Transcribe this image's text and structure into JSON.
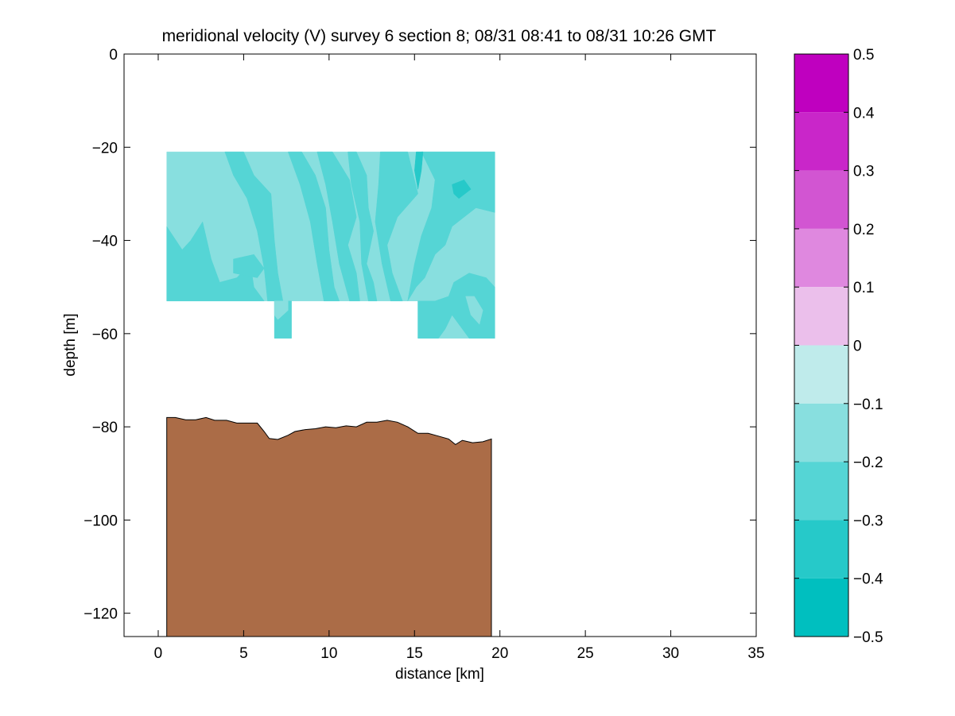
{
  "chart_data": {
    "type": "contour section",
    "title": "meridional velocity (V) survey 6 section 8; 08/31 08:41 to 08/31 10:26 GMT",
    "xlabel": "distance [km]",
    "ylabel": "depth [m]",
    "xlim": [
      -2,
      35
    ],
    "ylim": [
      -125,
      0
    ],
    "xticks": [
      0,
      5,
      10,
      15,
      20,
      25,
      30,
      35
    ],
    "xtick_labels": [
      "0",
      "5",
      "10",
      "15",
      "20",
      "25",
      "30",
      "35"
    ],
    "yticks": [
      0,
      -20,
      -40,
      -60,
      -80,
      -100,
      -120
    ],
    "ytick_labels": [
      "0",
      "−20",
      "−40",
      "−60",
      "−80",
      "−100",
      "−120"
    ],
    "grid": false,
    "data_region": {
      "x_range": [
        0.5,
        19.7
      ],
      "depth_top": -21,
      "depth_bottom_main": -53,
      "depth_bottom_extended": -61,
      "extended_columns_x": [
        [
          6.8,
          7.8
        ],
        [
          15.2,
          19.7
        ]
      ],
      "value_range": [
        -0.3,
        -0.1
      ]
    },
    "velocity_regions": [
      {
        "level": -0.2,
        "polygon": [
          [
            0.5,
            -21
          ],
          [
            19.7,
            -21
          ],
          [
            19.7,
            -53
          ],
          [
            0.5,
            -53
          ]
        ]
      },
      {
        "level": -0.3,
        "polygon": [
          [
            0.5,
            -37
          ],
          [
            1.4,
            -42
          ],
          [
            1.9,
            -40
          ],
          [
            2.6,
            -36
          ],
          [
            3.1,
            -44
          ],
          [
            3.6,
            -49
          ],
          [
            4.6,
            -48
          ],
          [
            5.4,
            -45
          ],
          [
            5.6,
            -50
          ],
          [
            6.2,
            -53
          ],
          [
            0.5,
            -53
          ]
        ]
      },
      {
        "level": -0.3,
        "polygon": [
          [
            3.9,
            -21
          ],
          [
            5.0,
            -21
          ],
          [
            5.6,
            -26
          ],
          [
            6.6,
            -30
          ],
          [
            6.8,
            -40
          ],
          [
            7.0,
            -47
          ],
          [
            7.3,
            -53
          ],
          [
            6.4,
            -53
          ],
          [
            6.2,
            -46
          ],
          [
            5.8,
            -38
          ],
          [
            5.2,
            -31
          ],
          [
            4.4,
            -26
          ]
        ]
      },
      {
        "level": -0.3,
        "polygon": [
          [
            4.4,
            -44
          ],
          [
            5.6,
            -43
          ],
          [
            6.2,
            -46
          ],
          [
            5.8,
            -48
          ],
          [
            4.4,
            -47
          ]
        ]
      },
      {
        "level": -0.3,
        "polygon": [
          [
            7.6,
            -21
          ],
          [
            8.4,
            -21
          ],
          [
            9.2,
            -26
          ],
          [
            9.8,
            -33
          ],
          [
            10.0,
            -42
          ],
          [
            10.3,
            -50
          ],
          [
            10.6,
            -53
          ],
          [
            9.7,
            -53
          ],
          [
            9.3,
            -45
          ],
          [
            8.9,
            -36
          ],
          [
            8.3,
            -28
          ]
        ]
      },
      {
        "level": -0.3,
        "polygon": [
          [
            9.3,
            -21
          ],
          [
            10.2,
            -21
          ],
          [
            11.2,
            -27
          ],
          [
            11.6,
            -35
          ],
          [
            11.1,
            -41
          ],
          [
            11.6,
            -47
          ],
          [
            11.8,
            -53
          ],
          [
            11.2,
            -53
          ],
          [
            10.6,
            -45
          ],
          [
            10.2,
            -36
          ],
          [
            9.8,
            -28
          ]
        ]
      },
      {
        "level": -0.3,
        "polygon": [
          [
            11.1,
            -21
          ],
          [
            11.6,
            -21
          ],
          [
            12.2,
            -26
          ],
          [
            12.3,
            -33
          ],
          [
            12.6,
            -38
          ],
          [
            12.2,
            -45
          ],
          [
            12.6,
            -49
          ],
          [
            12.8,
            -53
          ],
          [
            12.3,
            -53
          ],
          [
            11.9,
            -45
          ],
          [
            11.8,
            -36
          ],
          [
            11.3,
            -28
          ]
        ]
      },
      {
        "level": -0.3,
        "polygon": [
          [
            13.0,
            -21
          ],
          [
            14.6,
            -21
          ],
          [
            15.2,
            -30
          ],
          [
            14.0,
            -35
          ],
          [
            13.4,
            -41
          ],
          [
            13.7,
            -47
          ],
          [
            14.3,
            -53
          ],
          [
            13.6,
            -53
          ],
          [
            13.1,
            -45
          ],
          [
            12.7,
            -36
          ],
          [
            12.9,
            -28
          ]
        ]
      },
      {
        "level": -0.3,
        "polygon": [
          [
            15.4,
            -21
          ],
          [
            19.7,
            -21
          ],
          [
            19.7,
            -34
          ],
          [
            18.6,
            -33
          ],
          [
            17.9,
            -35
          ],
          [
            17.2,
            -37
          ],
          [
            16.8,
            -41
          ],
          [
            16.2,
            -43
          ],
          [
            15.6,
            -48
          ],
          [
            15.1,
            -50
          ],
          [
            14.6,
            -53
          ],
          [
            15.0,
            -45
          ],
          [
            15.4,
            -39
          ],
          [
            16.0,
            -33
          ],
          [
            16.2,
            -27
          ]
        ]
      },
      {
        "level": -0.4,
        "polygon": [
          [
            15.1,
            -21
          ],
          [
            15.5,
            -21
          ],
          [
            15.4,
            -25
          ],
          [
            15.2,
            -29
          ],
          [
            15.0,
            -25
          ]
        ]
      },
      {
        "level": -0.4,
        "polygon": [
          [
            17.2,
            -28
          ],
          [
            17.9,
            -27
          ],
          [
            18.3,
            -29
          ],
          [
            17.6,
            -31
          ],
          [
            17.3,
            -30
          ]
        ]
      },
      {
        "level": -0.3,
        "polygon": [
          [
            6.8,
            -53
          ],
          [
            7.8,
            -53
          ],
          [
            7.8,
            -61
          ],
          [
            6.8,
            -61
          ]
        ]
      },
      {
        "level": -0.2,
        "polygon": [
          [
            6.8,
            -53
          ],
          [
            7.6,
            -53
          ],
          [
            7.6,
            -55
          ],
          [
            7.0,
            -57
          ],
          [
            6.8,
            -56
          ]
        ]
      },
      {
        "level": -0.2,
        "polygon": [
          [
            15.2,
            -53
          ],
          [
            19.7,
            -53
          ],
          [
            19.7,
            -61
          ],
          [
            15.2,
            -61
          ]
        ]
      },
      {
        "level": -0.3,
        "polygon": [
          [
            17.3,
            -49
          ],
          [
            18.2,
            -47
          ],
          [
            19.2,
            -48
          ],
          [
            19.7,
            -50
          ],
          [
            19.7,
            -61
          ],
          [
            18.2,
            -61
          ],
          [
            17.6,
            -58
          ],
          [
            17.2,
            -56
          ],
          [
            16.8,
            -59
          ],
          [
            16.4,
            -61
          ],
          [
            15.2,
            -61
          ],
          [
            15.2,
            -53
          ],
          [
            16.2,
            -53
          ],
          [
            17.0,
            -52
          ]
        ]
      },
      {
        "level": -0.2,
        "polygon": [
          [
            18.0,
            -52
          ],
          [
            18.5,
            -52
          ],
          [
            19.0,
            -55
          ],
          [
            18.8,
            -58
          ],
          [
            18.3,
            -56
          ]
        ]
      }
    ],
    "bathymetry": [
      [
        0.5,
        -78
      ],
      [
        1.0,
        -78
      ],
      [
        1.6,
        -78.5
      ],
      [
        2.2,
        -78.5
      ],
      [
        2.8,
        -78
      ],
      [
        3.3,
        -78.6
      ],
      [
        4.0,
        -78.6
      ],
      [
        4.6,
        -79.2
      ],
      [
        5.2,
        -79.2
      ],
      [
        5.8,
        -79.2
      ],
      [
        6.2,
        -81
      ],
      [
        6.5,
        -82.5
      ],
      [
        7.0,
        -82.7
      ],
      [
        7.6,
        -81.8
      ],
      [
        8.0,
        -81
      ],
      [
        8.6,
        -80.6
      ],
      [
        9.2,
        -80.4
      ],
      [
        9.8,
        -80
      ],
      [
        10.4,
        -80.2
      ],
      [
        11.0,
        -79.8
      ],
      [
        11.6,
        -80
      ],
      [
        12.2,
        -79
      ],
      [
        12.8,
        -79
      ],
      [
        13.4,
        -78.6
      ],
      [
        14.0,
        -79
      ],
      [
        14.6,
        -80
      ],
      [
        15.2,
        -81.4
      ],
      [
        15.8,
        -81.4
      ],
      [
        16.4,
        -82
      ],
      [
        17.0,
        -82.6
      ],
      [
        17.4,
        -83.8
      ],
      [
        17.8,
        -82.9
      ],
      [
        18.4,
        -83.4
      ],
      [
        19.0,
        -83.2
      ],
      [
        19.5,
        -82.6
      ]
    ],
    "bathymetry_xrange": [
      0.5,
      19.5
    ],
    "colorbar": {
      "range": [
        -0.5,
        0.5
      ],
      "step": 0.1,
      "tick_values": [
        0.5,
        0.4,
        0.3,
        0.2,
        0.1,
        0,
        -0.1,
        -0.2,
        -0.3,
        -0.4,
        -0.5
      ],
      "tick_labels": [
        "0.5",
        "0.4",
        "0.3",
        "0.2",
        "0.1",
        "0",
        "−0.1",
        "−0.2",
        "−0.3",
        "−0.4",
        "−0.5"
      ],
      "bands": [
        {
          "from": 0.4,
          "to": 0.5,
          "color": "#bf00bf"
        },
        {
          "from": 0.3,
          "to": 0.4,
          "color": "#c926c9"
        },
        {
          "from": 0.2,
          "to": 0.3,
          "color": "#d255d2"
        },
        {
          "from": 0.1,
          "to": 0.2,
          "color": "#df88df"
        },
        {
          "from": 0.0,
          "to": 0.1,
          "color": "#ebbfeb"
        },
        {
          "from": -0.1,
          "to": 0.0,
          "color": "#bfebeb"
        },
        {
          "from": -0.2,
          "to": -0.1,
          "color": "#88dfdf"
        },
        {
          "from": -0.3,
          "to": -0.2,
          "color": "#55d5d5"
        },
        {
          "from": -0.4,
          "to": -0.3,
          "color": "#26c9c9"
        },
        {
          "from": -0.5,
          "to": -0.4,
          "color": "#00bfbf"
        }
      ]
    },
    "colors": {
      "seafloor": "#ab6c47",
      "level_-0.4": "#26c9c9",
      "level_-0.3": "#55d5d5",
      "level_-0.2": "#88dfdf",
      "axes": "#000000",
      "background": "#ffffff"
    }
  }
}
